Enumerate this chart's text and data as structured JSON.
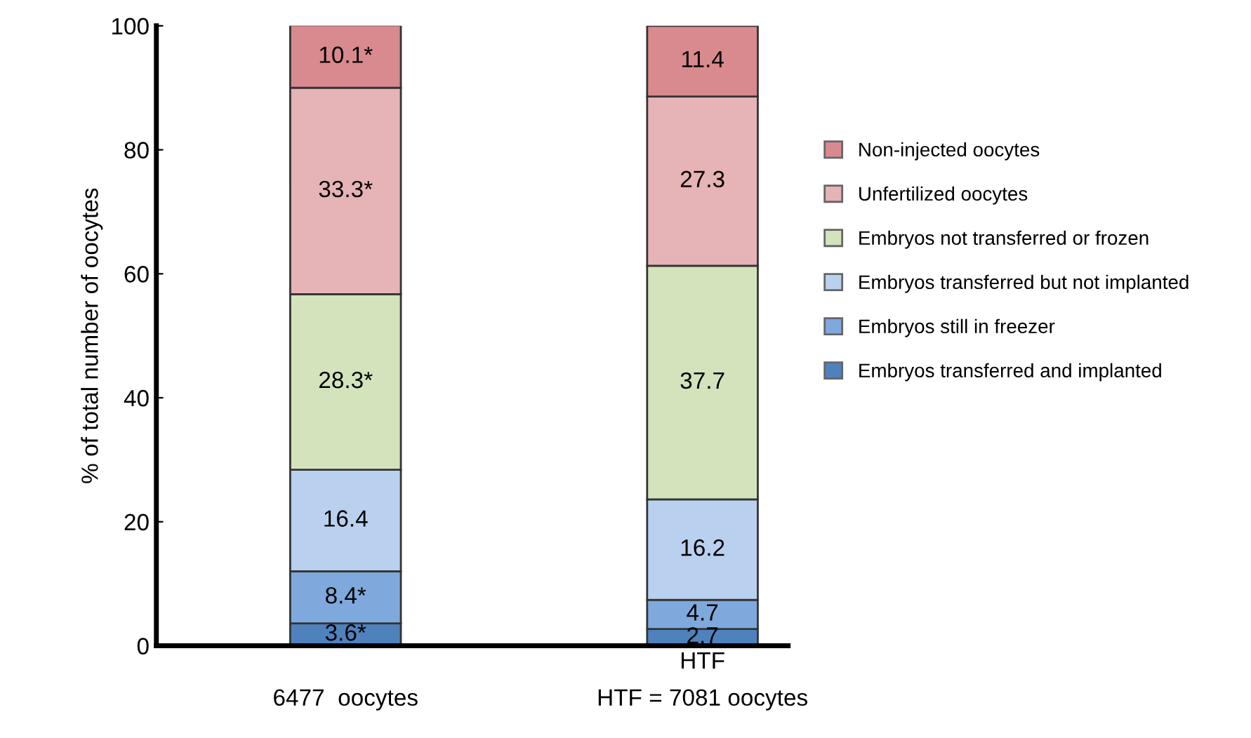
{
  "chart_data": {
    "type": "bar",
    "stacked": true,
    "ylabel": "% of total number of oocytes",
    "categories": [
      null,
      "HTF"
    ],
    "annotations": [
      "6477  oocytes",
      "HTF = 7081 oocytes"
    ],
    "series": [
      {
        "name": "Embryos transferred and implanted",
        "color": "#4f81bd",
        "values": [
          3.6,
          2.7
        ],
        "value_labels": [
          "3.6*",
          "2.7"
        ]
      },
      {
        "name": "Embryos still in freezer",
        "color": "#7fa9dd",
        "values": [
          8.4,
          4.7
        ],
        "value_labels": [
          "8.4*",
          "4.7"
        ]
      },
      {
        "name": "Embryos transferred but not implanted",
        "color": "#b9d1ee",
        "values": [
          16.4,
          16.2
        ],
        "value_labels": [
          "16.4",
          "16.2"
        ]
      },
      {
        "name": "Embryos not transferred or frozen",
        "color": "#d3e4bd",
        "values": [
          28.3,
          37.7
        ],
        "value_labels": [
          "28.3*",
          "37.7"
        ]
      },
      {
        "name": "Unfertilized oocytes",
        "color": "#e6b3b6",
        "values": [
          33.3,
          27.3
        ],
        "value_labels": [
          "33.3*",
          "27.3"
        ]
      },
      {
        "name": "Non-injected oocytes",
        "color": "#d98a8e",
        "values": [
          10.1,
          11.4
        ],
        "value_labels": [
          "10.1*",
          "11.4"
        ]
      }
    ],
    "ylim": [
      0,
      100
    ],
    "yticks": [
      0,
      20,
      40,
      60,
      80,
      100
    ],
    "grid": false,
    "legend": "right"
  }
}
